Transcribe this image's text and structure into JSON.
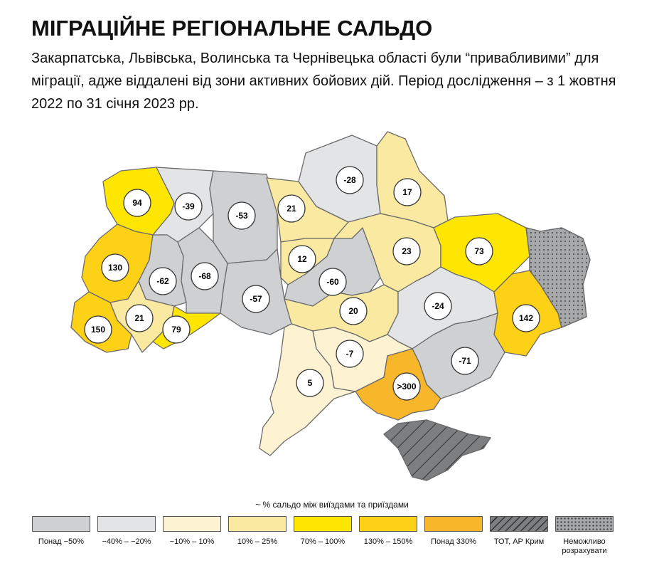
{
  "header": {
    "title": "МІГРАЦІЙНЕ РЕГІОНАЛЬНЕ САЛЬДО",
    "subtitle": "Закарпатська, Львівська, Волинська та Чернівецька області були “привабливими” для міграції, адже віддалені від зони активних бойових дій. Період дослідження – з 1 жовтня 2022 по 31 січня 2023 рр."
  },
  "regions": [
    {
      "label": "94",
      "color": "#ffe600"
    },
    {
      "label": "-39",
      "color": "#e3e4e6"
    },
    {
      "label": "-53",
      "color": "#cfd0d2"
    },
    {
      "label": "21",
      "color": "#fae9a0"
    },
    {
      "label": "-28",
      "color": "#e3e4e6"
    },
    {
      "label": "17",
      "color": "#fae9a0"
    },
    {
      "label": "130",
      "color": "#fcd116"
    },
    {
      "label": "-62",
      "color": "#cfd0d2"
    },
    {
      "label": "-68",
      "color": "#cfd0d2"
    },
    {
      "label": "12",
      "color": "#fae9a0"
    },
    {
      "label": "-60",
      "color": "#cfd0d2"
    },
    {
      "label": "23",
      "color": "#fae9a0"
    },
    {
      "label": "73",
      "color": "#ffe600"
    },
    {
      "label": "21",
      "color": "#fae9a0"
    },
    {
      "label": "150",
      "color": "#fcd116"
    },
    {
      "label": "79",
      "color": "#ffe600"
    },
    {
      "label": "-57",
      "color": "#cfd0d2"
    },
    {
      "label": "20",
      "color": "#fae9a0"
    },
    {
      "label": "-24",
      "color": "#e3e4e6"
    },
    {
      "label": "142",
      "color": "#fcd116"
    },
    {
      "label": "-71",
      "color": "#cfd0d2"
    },
    {
      "label": "-7",
      "color": "#fdf3d2"
    },
    {
      "label": "5",
      "color": "#fdf3d2"
    },
    {
      "label": ">300",
      "color": "#f8b72a"
    },
    {
      "color": "#a7a8aa",
      "pattern": "dots"
    },
    {
      "color": "#7d7e80",
      "pattern": "hatch"
    }
  ],
  "legend": {
    "title": "~ % сальдо між виїздами та приїздами",
    "items": [
      {
        "label": "Понад −50%",
        "color": "#cfd0d2"
      },
      {
        "label": "−40% – −20%",
        "color": "#e3e4e6"
      },
      {
        "label": "−10% – 10%",
        "color": "#fdf3d2"
      },
      {
        "label": "10% – 25%",
        "color": "#fae9a0"
      },
      {
        "label": "70% – 100%",
        "color": "#ffe600"
      },
      {
        "label": "130% – 150%",
        "color": "#fcd116"
      },
      {
        "label": "Понад 330%",
        "color": "#f8b72a"
      },
      {
        "label": "ТОТ, АР Крим",
        "color": "#7d7e80",
        "pattern": "hatch"
      },
      {
        "label": "Неможливо розрахувати",
        "color": "#a7a8aa",
        "pattern": "dots"
      }
    ]
  }
}
